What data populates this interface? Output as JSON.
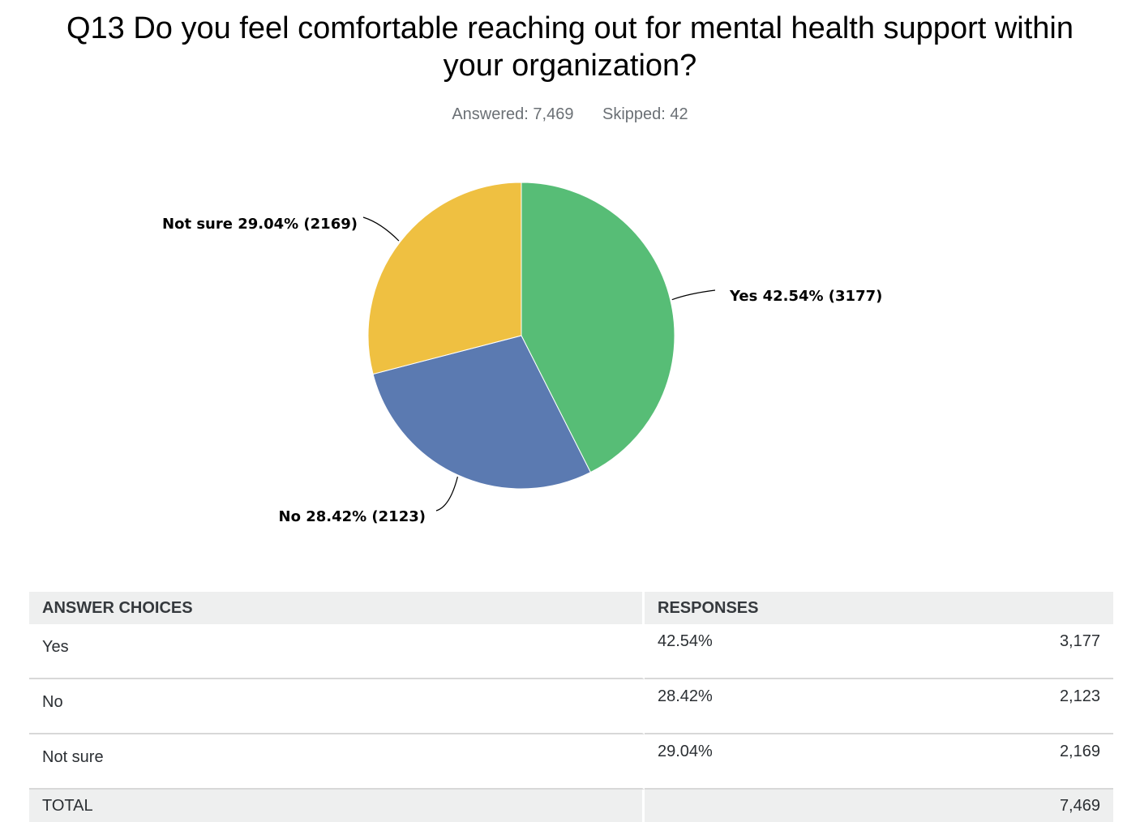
{
  "header": {
    "title": "Q13 Do you feel comfortable reaching out for mental health support within your organization?",
    "answered": "Answered: 7,469",
    "skipped": "Skipped: 42"
  },
  "chart_data": {
    "type": "pie",
    "title": "Q13 Do you feel comfortable reaching out for mental health support within your organization?",
    "slices": [
      {
        "label": "Yes",
        "percent": 42.54,
        "count": 3177,
        "color": "#57bd76",
        "display": "Yes 42.54% (3177)"
      },
      {
        "label": "No",
        "percent": 28.42,
        "count": 2123,
        "color": "#5b7ab1",
        "display": "No 28.42% (2123)"
      },
      {
        "label": "Not sure",
        "percent": 29.04,
        "count": 2169,
        "color": "#efc041",
        "display": "Not sure 29.04% (2169)"
      }
    ]
  },
  "table": {
    "headers": {
      "choices": "ANSWER CHOICES",
      "responses": "RESPONSES"
    },
    "rows": [
      {
        "choice": "Yes",
        "percent": "42.54%",
        "count": "3,177"
      },
      {
        "choice": "No",
        "percent": "28.42%",
        "count": "2,123"
      },
      {
        "choice": "Not sure",
        "percent": "29.04%",
        "count": "2,169"
      }
    ],
    "total": {
      "label": "TOTAL",
      "count": "7,469"
    }
  }
}
